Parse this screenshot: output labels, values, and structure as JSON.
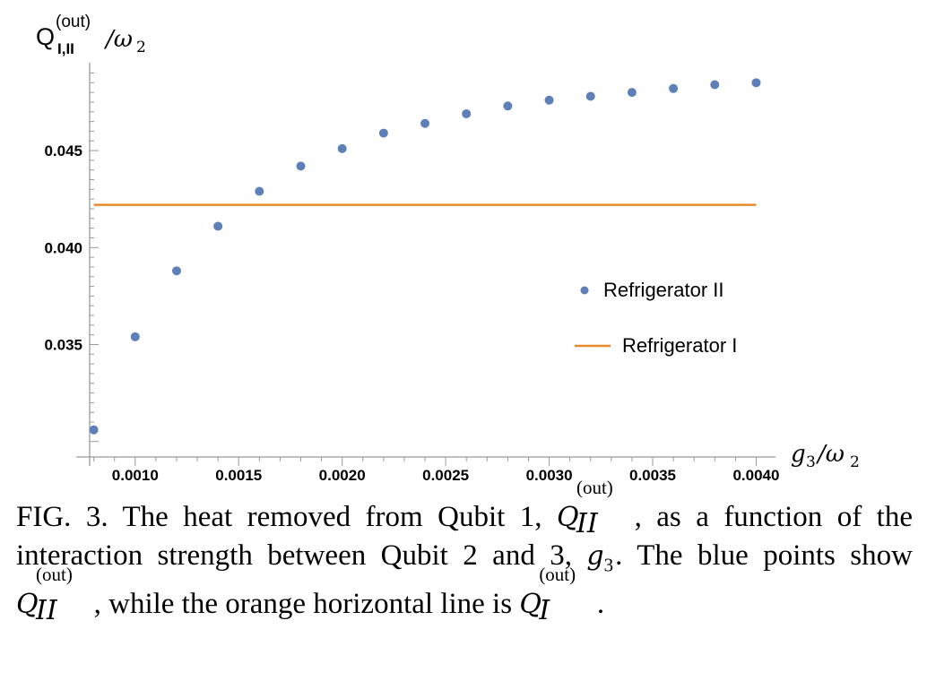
{
  "chart_data": {
    "type": "scatter",
    "ylabel": "Q",
    "ylabel_sup": "(out)",
    "ylabel_sub": "I,II",
    "ylabel_tail": "/ω",
    "ylabel_tail_sub": "2",
    "xlabel": "g",
    "xlabel_sub": "3",
    "xlabel_tail": "/ω",
    "xlabel_tail_sub": "2",
    "xlim": [
      0.00078,
      0.00405
    ],
    "ylim": [
      0.0292,
      0.0493
    ],
    "x_ticks": [
      "0.0010",
      "0.0015",
      "0.0020",
      "0.0025",
      "0.0030",
      "0.0035",
      "0.0040"
    ],
    "x_tick_values": [
      0.001,
      0.0015,
      0.002,
      0.0025,
      0.003,
      0.0035,
      0.004
    ],
    "y_ticks": [
      "0.035",
      "0.040",
      "0.045"
    ],
    "y_tick_values": [
      0.035,
      0.04,
      0.045
    ],
    "legend_position": "right",
    "series": [
      {
        "name": "Refrigerator II",
        "kind": "points",
        "color": "#5e7fb8",
        "x": [
          0.0008,
          0.001,
          0.0012,
          0.0014,
          0.0016,
          0.0018,
          0.002,
          0.0022,
          0.0024,
          0.0026,
          0.0028,
          0.003,
          0.0032,
          0.0034,
          0.0036,
          0.0038,
          0.004
        ],
        "y": [
          0.0306,
          0.0354,
          0.0388,
          0.0411,
          0.0429,
          0.0442,
          0.0451,
          0.0459,
          0.0464,
          0.0469,
          0.0473,
          0.0476,
          0.0478,
          0.048,
          0.0482,
          0.0484,
          0.0485
        ]
      },
      {
        "name": "Refrigerator I",
        "kind": "line",
        "color": "#e8892c",
        "x": [
          0.0008,
          0.004
        ],
        "y": [
          0.0422,
          0.0422
        ]
      }
    ]
  },
  "caption": {
    "part1": "FIG. 3. The heat removed from Qubit 1, ",
    "sym1_base": "Q",
    "sym1_sup": "(out)",
    "sym1_sub": "II",
    "part2": ", as a function of the interaction strength between Qubit 2 and 3, ",
    "g_base": "g",
    "g_sub": "3",
    "part3": ". The blue points show ",
    "sym2_base": "Q",
    "sym2_sup": "(out)",
    "sym2_sub": "II",
    "part4": ", while the orange horizontal line is ",
    "sym3_base": "Q",
    "sym3_sup": "(out)",
    "sym3_sub": "I",
    "part5": "."
  }
}
